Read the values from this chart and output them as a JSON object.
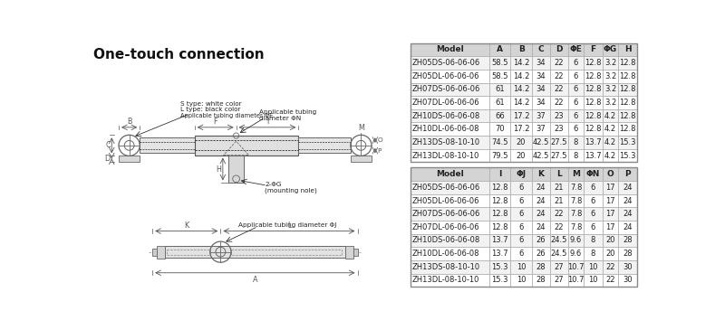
{
  "title": "One-touch connection",
  "table1_headers": [
    "Model",
    "A",
    "B",
    "C",
    "D",
    "ΦE",
    "F",
    "ΦG",
    "H"
  ],
  "table1_rows": [
    [
      "ZH05DS-06-06-06",
      "58.5",
      "14.2",
      "34",
      "22",
      "6",
      "12.8",
      "3.2",
      "12.8"
    ],
    [
      "ZH05DL-06-06-06",
      "58.5",
      "14.2",
      "34",
      "22",
      "6",
      "12.8",
      "3.2",
      "12.8"
    ],
    [
      "ZH07DS-06-06-06",
      "61",
      "14.2",
      "34",
      "22",
      "6",
      "12.8",
      "3.2",
      "12.8"
    ],
    [
      "ZH07DL-06-06-06",
      "61",
      "14.2",
      "34",
      "22",
      "6",
      "12.8",
      "3.2",
      "12.8"
    ],
    [
      "ZH10DS-06-06-08",
      "66",
      "17.2",
      "37",
      "23",
      "6",
      "12.8",
      "4.2",
      "12.8"
    ],
    [
      "ZH10DL-06-06-08",
      "70",
      "17.2",
      "37",
      "23",
      "6",
      "12.8",
      "4.2",
      "12.8"
    ],
    [
      "ZH13DS-08-10-10",
      "74.5",
      "20",
      "42.5",
      "27.5",
      "8",
      "13.7",
      "4.2",
      "15.3"
    ],
    [
      "ZH13DL-08-10-10",
      "79.5",
      "20",
      "42.5",
      "27.5",
      "8",
      "13.7",
      "4.2",
      "15.3"
    ]
  ],
  "table2_headers": [
    "Model",
    "I",
    "ΦJ",
    "K",
    "L",
    "M",
    "ΦN",
    "O",
    "P"
  ],
  "table2_rows": [
    [
      "ZH05DS-06-06-06",
      "12.8",
      "6",
      "24",
      "21",
      "7.8",
      "6",
      "17",
      "24"
    ],
    [
      "ZH05DL-06-06-06",
      "12.8",
      "6",
      "24",
      "21",
      "7.8",
      "6",
      "17",
      "24"
    ],
    [
      "ZH07DS-06-06-06",
      "12.8",
      "6",
      "24",
      "22",
      "7.8",
      "6",
      "17",
      "24"
    ],
    [
      "ZH07DL-06-06-06",
      "12.8",
      "6",
      "24",
      "22",
      "7.8",
      "6",
      "17",
      "24"
    ],
    [
      "ZH10DS-06-06-08",
      "13.7",
      "6",
      "26",
      "24.5",
      "9.6",
      "8",
      "20",
      "28"
    ],
    [
      "ZH10DL-06-06-08",
      "13.7",
      "6",
      "26",
      "24.5",
      "9.6",
      "8",
      "20",
      "28"
    ],
    [
      "ZH13DS-08-10-10",
      "15.3",
      "10",
      "28",
      "27",
      "10.7",
      "10",
      "22",
      "30"
    ],
    [
      "ZH13DL-08-10-10",
      "15.3",
      "10",
      "28",
      "27",
      "10.7",
      "10",
      "22",
      "30"
    ]
  ],
  "header_bg": "#d4d4d4",
  "row_bg_odd": "#f2f2f2",
  "row_bg_even": "#ffffff",
  "border_color": "#aaaaaa",
  "text_color": "#222222",
  "bg_color": "#ffffff",
  "label_font_size": 5.8,
  "table_font_size": 6.0,
  "header_font_size": 6.5,
  "title_fontsize": 11
}
